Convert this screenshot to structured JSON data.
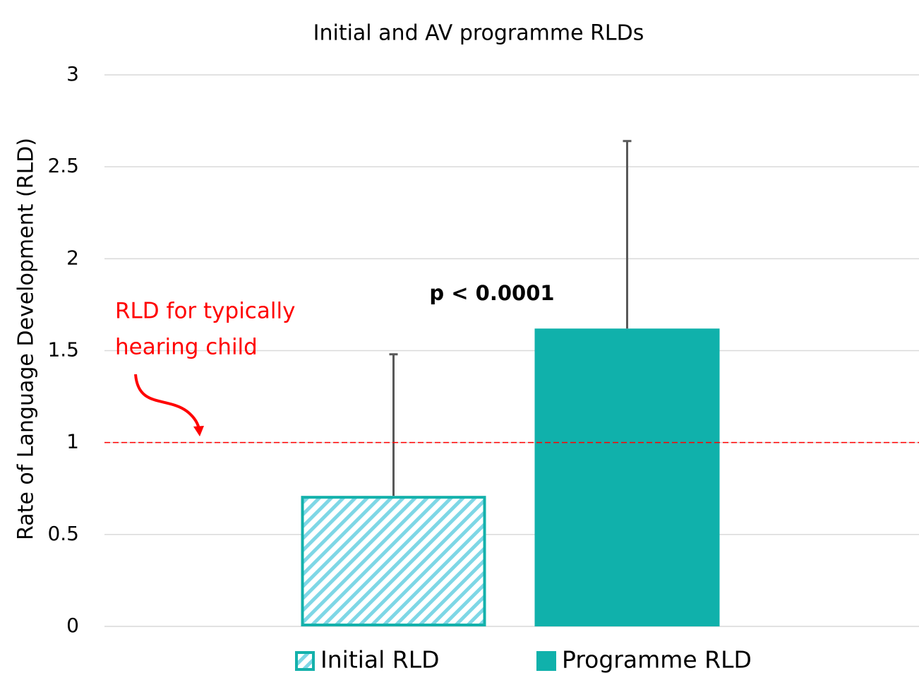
{
  "chart_data": {
    "type": "bar",
    "title": "Initial and AV programme RLDs",
    "y_label": "Rate of Language Development (RLD)",
    "categories": [
      null
    ],
    "series": [
      {
        "name": "Initial RLD",
        "color": "#14b1ab",
        "pattern": "hatch",
        "values": [
          0.71
        ],
        "errors": [
          0.77
        ]
      },
      {
        "name": "Programme RLD",
        "color": "#10b1ab",
        "pattern": "solid",
        "values": [
          1.62
        ],
        "errors": [
          1.02
        ]
      }
    ],
    "ylim": [
      0,
      3
    ],
    "yticks": [
      0,
      0.5,
      1,
      1.5,
      2,
      2.5,
      3
    ],
    "grid": true,
    "reference_line": {
      "value": 1,
      "color": "#ff0000",
      "label": [
        "RLD for typically",
        "hearing child"
      ]
    },
    "annotation": "p < 0.0001",
    "legend": "bottom"
  }
}
